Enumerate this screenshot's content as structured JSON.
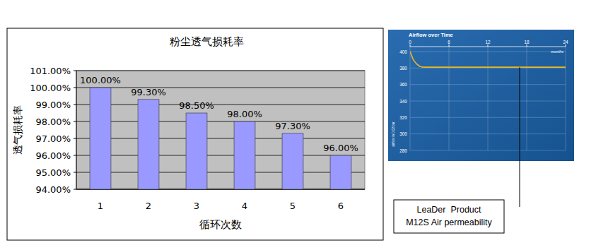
{
  "chart_data": [
    {
      "type": "bar",
      "title": "粉尘透气损耗率",
      "x_label": "循环次数",
      "y_label": "透气损耗率",
      "categories": [
        "1",
        "2",
        "3",
        "4",
        "5",
        "6"
      ],
      "values": [
        100,
        99.3,
        98.5,
        98,
        97.3,
        96
      ],
      "value_labels": [
        "100.00%",
        "99.30%",
        "98.50%",
        "98.00%",
        "97.30%",
        "96.00%"
      ],
      "data_labels": true,
      "color": "#9999ff",
      "grid": true,
      "ylim": [
        94,
        101
      ],
      "yticks": [
        {
          "value": 94,
          "label": "94.00%"
        },
        {
          "value": 95,
          "label": "95.00%"
        },
        {
          "value": 96,
          "label": "96.00%"
        },
        {
          "value": 97,
          "label": "97.00%"
        },
        {
          "value": 98,
          "label": "98.00%"
        },
        {
          "value": 99,
          "label": "99.00%"
        },
        {
          "value": 100,
          "label": "100.00%"
        },
        {
          "value": 101,
          "label": "101.00%"
        }
      ]
    },
    {
      "type": "line",
      "title": "Airflow over Time",
      "x_label": "months",
      "y_label": "airflow in 0.02 bar",
      "x": [
        0,
        0.5,
        1,
        1.5,
        2,
        3,
        6,
        12,
        18,
        24
      ],
      "values": [
        400,
        390,
        385,
        382,
        381,
        381,
        381,
        381,
        381,
        381
      ],
      "color": "#e8b820",
      "grid": true,
      "xlim": [
        0,
        24
      ],
      "xticks": [
        0,
        6,
        12,
        18,
        24
      ],
      "ylim": [
        280,
        400
      ],
      "yticks": [
        280,
        300,
        320,
        340,
        360,
        380,
        400
      ],
      "annotation": [
        "LeaDer  Product",
        "M12S Air permeability"
      ]
    }
  ]
}
